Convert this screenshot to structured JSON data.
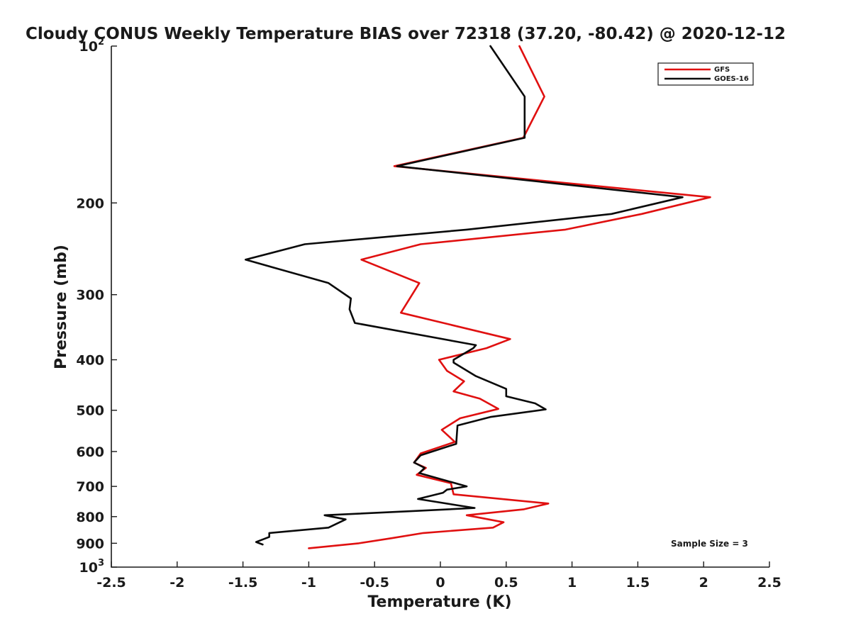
{
  "chart_data": {
    "type": "line",
    "title": "Cloudy CONUS Weekly Temperature BIAS over 72318 (37.20, -80.42) @ 2020-12-12",
    "xlabel": "Temperature (K)",
    "ylabel": "Pressure (mb)",
    "xlim": [
      -2.5,
      2.5
    ],
    "ylim": [
      100,
      1000
    ],
    "y_scale": "log",
    "y_reversed": true,
    "grid": false,
    "legend_position": "top-right",
    "x_ticks": [
      "-2.5",
      "-2",
      "-1.5",
      "-1",
      "-0.5",
      "0",
      "0.5",
      "1",
      "1.5",
      "2",
      "2.5"
    ],
    "x_tick_values": [
      -2.5,
      -2,
      -1.5,
      -1,
      -0.5,
      0,
      0.5,
      1,
      1.5,
      2,
      2.5
    ],
    "y_ticks": [
      {
        "value": 100,
        "base": "10",
        "exp": "2"
      },
      {
        "value": 200,
        "label": "200"
      },
      {
        "value": 300,
        "label": "300"
      },
      {
        "value": 400,
        "label": "400"
      },
      {
        "value": 500,
        "label": "500"
      },
      {
        "value": 600,
        "label": "600"
      },
      {
        "value": 700,
        "label": "700"
      },
      {
        "value": 800,
        "label": "800"
      },
      {
        "value": 900,
        "label": "900"
      },
      {
        "value": 1000,
        "base": "10",
        "exp": "3"
      }
    ],
    "annotation": "Sample Size = 3",
    "series": [
      {
        "name": "GFS",
        "color": "#e01010",
        "points": [
          [
            0.6,
            100
          ],
          [
            0.79,
            125
          ],
          [
            0.63,
            150
          ],
          [
            -0.35,
            170
          ],
          [
            2.05,
            195
          ],
          [
            1.53,
            210
          ],
          [
            0.95,
            225
          ],
          [
            -0.15,
            240
          ],
          [
            -0.6,
            257
          ],
          [
            -0.16,
            285
          ],
          [
            -0.3,
            325
          ],
          [
            0.53,
            365
          ],
          [
            0.35,
            380
          ],
          [
            -0.01,
            400
          ],
          [
            0.05,
            420
          ],
          [
            0.18,
            440
          ],
          [
            0.1,
            460
          ],
          [
            0.3,
            475
          ],
          [
            0.44,
            497
          ],
          [
            0.15,
            518
          ],
          [
            0.01,
            545
          ],
          [
            0.11,
            575
          ],
          [
            -0.15,
            605
          ],
          [
            -0.2,
            630
          ],
          [
            -0.11,
            645
          ],
          [
            -0.18,
            665
          ],
          [
            0.08,
            690
          ],
          [
            0.1,
            725
          ],
          [
            0.82,
            755
          ],
          [
            0.63,
            775
          ],
          [
            0.2,
            795
          ],
          [
            0.48,
            820
          ],
          [
            0.4,
            840
          ],
          [
            -0.13,
            860
          ],
          [
            -0.37,
            880
          ],
          [
            -0.62,
            900
          ],
          [
            -1.0,
            920
          ]
        ]
      },
      {
        "name": "GOES-16",
        "color": "#0a0a0a",
        "points": [
          [
            0.38,
            100
          ],
          [
            0.64,
            125
          ],
          [
            0.64,
            150
          ],
          [
            -0.33,
            170
          ],
          [
            1.84,
            195
          ],
          [
            1.3,
            210
          ],
          [
            0.2,
            225
          ],
          [
            -1.03,
            240
          ],
          [
            -1.48,
            257
          ],
          [
            -0.85,
            285
          ],
          [
            -0.68,
            305
          ],
          [
            -0.69,
            320
          ],
          [
            -0.65,
            340
          ],
          [
            0.27,
            375
          ],
          [
            0.25,
            380
          ],
          [
            0.1,
            400
          ],
          [
            0.1,
            405
          ],
          [
            0.27,
            430
          ],
          [
            0.5,
            455
          ],
          [
            0.5,
            470
          ],
          [
            0.72,
            485
          ],
          [
            0.8,
            498
          ],
          [
            0.38,
            515
          ],
          [
            0.13,
            535
          ],
          [
            0.12,
            580
          ],
          [
            -0.15,
            610
          ],
          [
            -0.2,
            630
          ],
          [
            -0.12,
            645
          ],
          [
            -0.16,
            660
          ],
          [
            0.2,
            700
          ],
          [
            0.05,
            710
          ],
          [
            0.02,
            720
          ],
          [
            -0.17,
            740
          ],
          [
            0.26,
            770
          ],
          [
            -0.18,
            780
          ],
          [
            -0.88,
            795
          ],
          [
            -0.72,
            810
          ],
          [
            -0.85,
            840
          ],
          [
            -1.3,
            860
          ],
          [
            -1.3,
            875
          ],
          [
            -1.4,
            895
          ],
          [
            -1.35,
            905
          ]
        ]
      }
    ]
  }
}
